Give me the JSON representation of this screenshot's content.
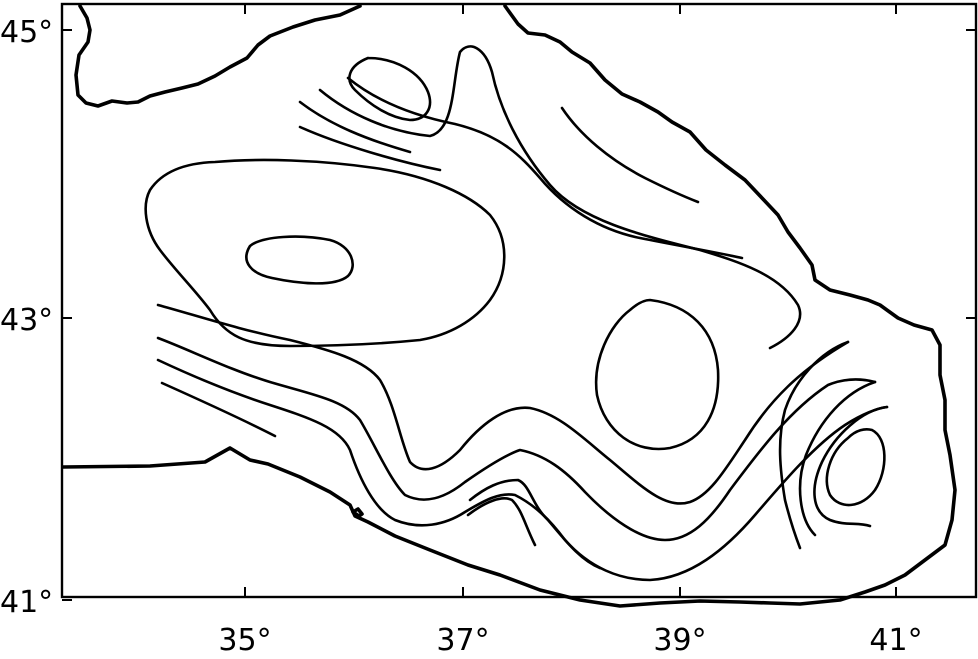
{
  "map": {
    "lon_labels": [
      "35°",
      "37°",
      "39°",
      "41°"
    ],
    "lat_labels": [
      "45°",
      "43°",
      "41°"
    ],
    "colors": {
      "ink": "#000000",
      "background": "#ffffff"
    }
  }
}
